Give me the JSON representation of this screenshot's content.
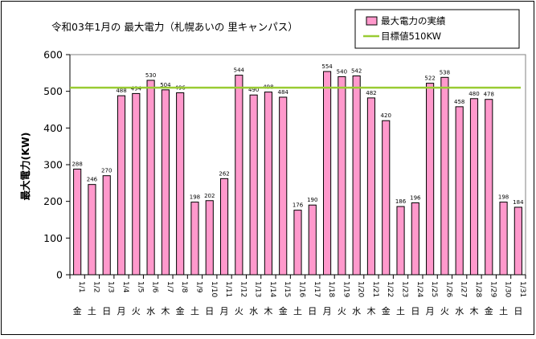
{
  "chart_data": {
    "type": "bar",
    "title": "令和03年1月の 最大電力（札幌あいの 里キャンパス）",
    "ylabel": "最大電力(KW)",
    "xlabel": "",
    "ylim": [
      0,
      600
    ],
    "yticks": [
      0,
      100,
      200,
      300,
      400,
      500,
      600
    ],
    "categories": [
      "1/1",
      "1/2",
      "1/3",
      "1/4",
      "1/5",
      "1/6",
      "1/7",
      "1/8",
      "1/9",
      "1/10",
      "1/11",
      "1/12",
      "1/13",
      "1/14",
      "1/15",
      "1/16",
      "1/17",
      "1/18",
      "1/19",
      "1/20",
      "1/21",
      "1/22",
      "1/23",
      "1/24",
      "1/25",
      "1/26",
      "1/27",
      "1/28",
      "1/29",
      "1/30",
      "1/31"
    ],
    "weekdays": [
      "金",
      "土",
      "日",
      "月",
      "火",
      "水",
      "木",
      "金",
      "土",
      "日",
      "月",
      "火",
      "水",
      "木",
      "金",
      "土",
      "日",
      "月",
      "火",
      "水",
      "木",
      "金",
      "土",
      "日",
      "月",
      "火",
      "水",
      "木",
      "金",
      "土",
      "日"
    ],
    "series": [
      {
        "name": "最大電力の実績",
        "color": "#ff99cc",
        "values": [
          288,
          246,
          270,
          488,
          494,
          530,
          504,
          496,
          198,
          202,
          262,
          544,
          490,
          498,
          484,
          176,
          190,
          554,
          540,
          542,
          482,
          420,
          186,
          196,
          522,
          538,
          458,
          480,
          478,
          198,
          184
        ]
      }
    ],
    "target": {
      "name": "目標値510KW",
      "value": 510,
      "color": "#99cc33"
    },
    "legend_position": "top-right",
    "grid": false
  }
}
